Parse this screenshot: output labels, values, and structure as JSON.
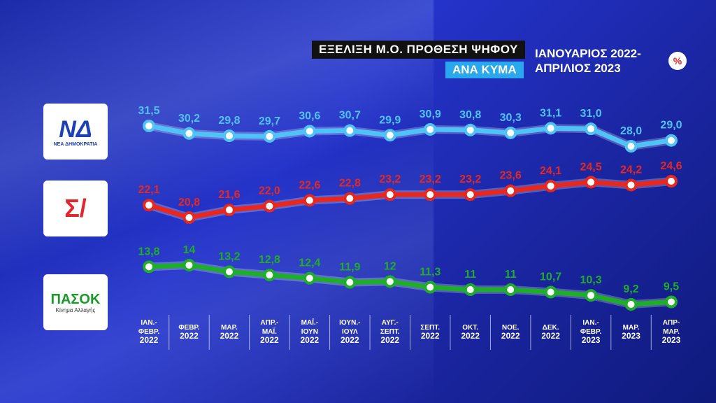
{
  "header": {
    "title": "ΕΞΕΛΙΞΗ Μ.Ο. ΠΡΟΘΕΣΗ ΨΗΦΟΥ",
    "subtitle": "ΑΝΑ ΚΥΜΑ",
    "period_line1": "ΙΑΝΟΥΑΡΙΟΣ 2022-",
    "period_line2": "ΑΠΡΙΛΙΟΣ 2023",
    "unit": "%"
  },
  "logos": {
    "nd_text": "ΝΔ",
    "nd_caption": "ΝΕΑ ΔΗΜΟΚΡΑΤΙΑ",
    "syriza_text": "Σ/",
    "pasok_text": "ΠΑΣΟΚ",
    "pasok_caption": "Κίνημα Αλλαγής"
  },
  "chart_data": {
    "type": "line",
    "categories": [
      [
        "ΙΑΝ.-",
        "ΦΕΒΡ.",
        "2022"
      ],
      [
        "ΦΕΒΡ.",
        "2022"
      ],
      [
        "ΜΑΡ.",
        "2022"
      ],
      [
        "ΑΠΡ.-",
        "ΜΑΪ.",
        "2022"
      ],
      [
        "ΜΑΪ.-",
        "ΙΟΥΝ",
        "2022"
      ],
      [
        "ΙΟΥΝ.-",
        "ΙΟΥΛ",
        "2022"
      ],
      [
        "ΑΥΓ.-",
        "ΣΕΠΤ.",
        "2022"
      ],
      [
        "ΣΕΠΤ.",
        "2022"
      ],
      [
        "ΟΚΤ.",
        "2022"
      ],
      [
        "ΝΟΕ.",
        "2022"
      ],
      [
        "ΔΕΚ.",
        "2022"
      ],
      [
        "ΙΑΝ.-",
        "ΦΕΒΡ.",
        "2023"
      ],
      [
        "ΜΑΡ.",
        "2023"
      ],
      [
        "ΑΠΡ-",
        "ΜΑΡ.",
        "2023"
      ]
    ],
    "series": [
      {
        "color": "#4fc3f7",
        "values": [
          31.5,
          30.2,
          29.8,
          29.7,
          30.6,
          30.7,
          29.9,
          30.9,
          30.8,
          30.3,
          31.1,
          31.0,
          28.0,
          29.0
        ],
        "labels": [
          "31,5",
          "30,2",
          "29,8",
          "29,7",
          "30,6",
          "30,7",
          "29,9",
          "30,9",
          "30,8",
          "30,3",
          "31,1",
          "31,0",
          "28,0",
          "29,0"
        ]
      },
      {
        "color": "#e8281f",
        "values": [
          22.1,
          20.8,
          21.6,
          22.0,
          22.6,
          22.8,
          23.2,
          23.2,
          23.2,
          23.6,
          24.1,
          24.5,
          24.2,
          24.6
        ],
        "labels": [
          "22,1",
          "20,8",
          "21,6",
          "22,0",
          "22,6",
          "22,8",
          "23,2",
          "23,2",
          "23,2",
          "23,6",
          "24,1",
          "24,5",
          "24,2",
          "24,6"
        ]
      },
      {
        "color": "#1fae2a",
        "values": [
          13.8,
          14,
          13.2,
          12.8,
          12.4,
          11.9,
          12,
          11.3,
          11,
          11,
          10.7,
          10.3,
          9.2,
          9.5
        ],
        "labels": [
          "13,8",
          "14",
          "13,2",
          "12,8",
          "12,4",
          "11,9",
          "12",
          "11,3",
          "11",
          "11",
          "10,7",
          "10,3",
          "9,2",
          "9,5"
        ]
      }
    ]
  }
}
